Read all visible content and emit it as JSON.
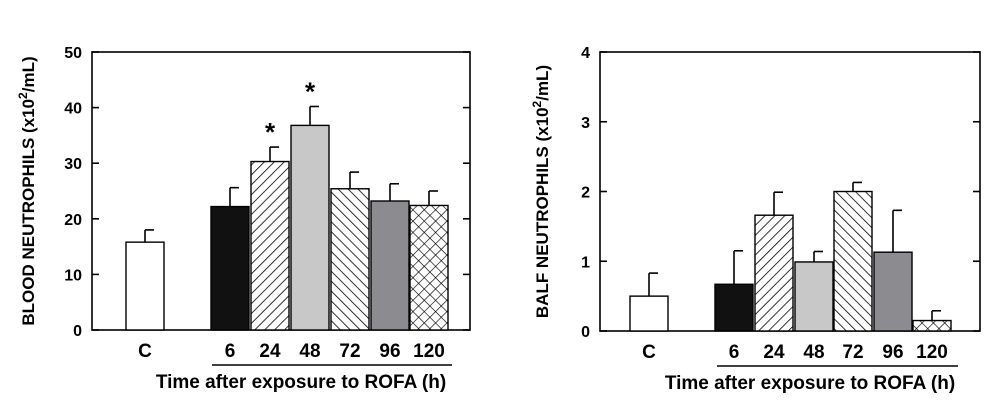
{
  "chart_data": [
    {
      "type": "bar",
      "categories": [
        "C",
        "6",
        "24",
        "48",
        "72",
        "96",
        "120"
      ],
      "values": [
        15.8,
        22.2,
        30.3,
        36.8,
        25.4,
        23.2,
        22.4
      ],
      "errors": [
        2.2,
        3.4,
        2.6,
        3.4,
        3.0,
        3.1,
        2.6
      ],
      "significance": [
        "",
        "",
        "*",
        "*",
        "",
        "",
        ""
      ],
      "patterns": [
        "open",
        "solid-black",
        "diagonal-right",
        "solid-light-gray",
        "diagonal-left",
        "solid-gray",
        "crosshatch"
      ],
      "ylabel_main": "BLOOD NEUTROPHILS (x10",
      "ylabel_sup": "2",
      "ylabel_tail": "/mL)",
      "xlabel": "Time after exposure to ROFA (h)",
      "ylim": [
        0,
        50
      ],
      "yticks": [
        "0",
        "10",
        "20",
        "30",
        "40",
        "50"
      ],
      "grid": false
    },
    {
      "type": "bar",
      "categories": [
        "C",
        "6",
        "24",
        "48",
        "72",
        "96",
        "120"
      ],
      "values": [
        0.5,
        0.67,
        1.66,
        0.99,
        2.0,
        1.13,
        0.15
      ],
      "errors": [
        0.33,
        0.48,
        0.33,
        0.15,
        0.13,
        0.6,
        0.14
      ],
      "significance": [
        "",
        "",
        "",
        "",
        "",
        "",
        ""
      ],
      "patterns": [
        "open",
        "solid-black",
        "diagonal-right",
        "solid-light-gray",
        "diagonal-left",
        "solid-gray",
        "crosshatch"
      ],
      "ylabel_main": "BALF NEUTROPHILS (x10",
      "ylabel_sup": "2",
      "ylabel_tail": "/mL)",
      "xlabel": "Time after exposure to ROFA (h)",
      "ylim": [
        0,
        4
      ],
      "yticks": [
        "0",
        "1",
        "2",
        "3",
        "4"
      ],
      "grid": false
    }
  ],
  "colors": {
    "solid-black": "#111111",
    "solid-light-gray": "#c8c8c8",
    "solid-gray": "#8c8c90",
    "axis": "#000000",
    "open": "#ffffff"
  }
}
